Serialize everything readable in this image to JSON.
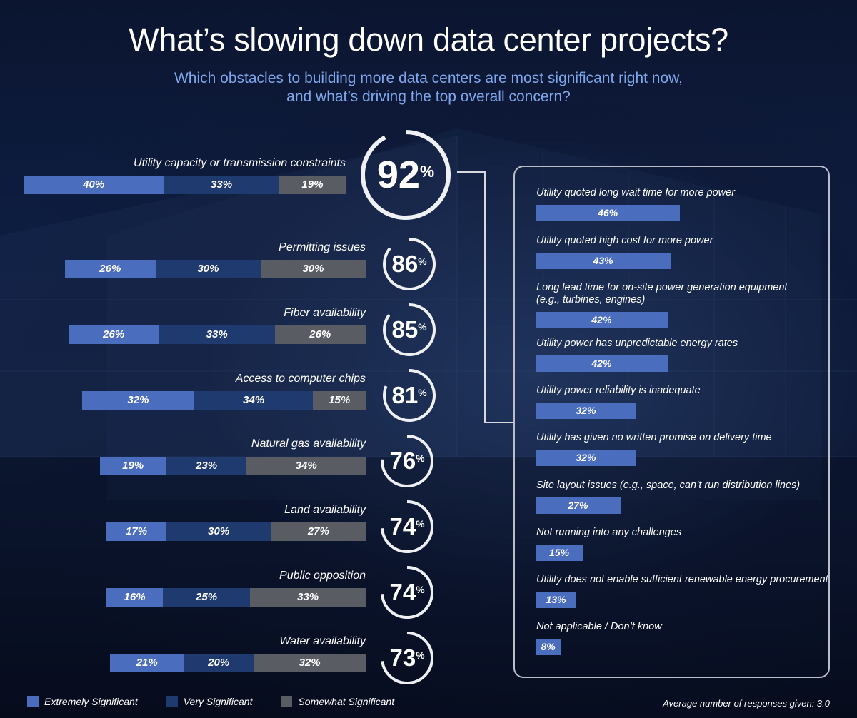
{
  "chart_data": [
    {
      "type": "bar",
      "orientation": "horizontal-stacked",
      "title": "What’s slowing down data center projects?",
      "subtitle_lines": [
        "Which obstacles to building more data centers are most significant right now,",
        "and what’s driving the top overall concern?"
      ],
      "categories": [
        "Utility capacity or transmission constraints",
        "Permitting issues",
        "Fiber availability",
        "Access to computer chips",
        "Natural gas availability",
        "Land availability",
        "Public opposition",
        "Water availability"
      ],
      "series": [
        {
          "name": "Extremely Significant",
          "color": "#4a6dbd",
          "values": [
            40,
            26,
            26,
            32,
            19,
            17,
            16,
            21
          ]
        },
        {
          "name": "Very Significant",
          "color": "#1e3a6e",
          "values": [
            33,
            30,
            33,
            34,
            23,
            30,
            25,
            20
          ]
        },
        {
          "name": "Somewhat Significant",
          "color": "#595c63",
          "values": [
            19,
            30,
            26,
            15,
            34,
            27,
            33,
            32
          ]
        }
      ],
      "totals": [
        92,
        86,
        85,
        81,
        76,
        74,
        74,
        73
      ],
      "value_suffix": "%",
      "legend_position": "bottom-left"
    },
    {
      "type": "bar",
      "orientation": "horizontal",
      "categories": [
        [
          "Utility quoted long wait time for more power"
        ],
        [
          "Utility quoted high cost for more power"
        ],
        [
          "Long lead time for on-site power generation equipment",
          "(e.g., turbines, engines)"
        ],
        [
          "Utility power has unpredictable energy rates"
        ],
        [
          "Utility power reliability is inadequate"
        ],
        [
          "Utility has given no written promise on delivery time"
        ],
        [
          "Site layout issues (e.g., space, can’t run distribution lines)"
        ],
        [
          "Not running into any challenges"
        ],
        [
          "Utility does not enable sufficient renewable energy procurement"
        ],
        [
          "Not applicable / Don’t know"
        ]
      ],
      "values": [
        46,
        43,
        42,
        42,
        32,
        32,
        27,
        15,
        13,
        8
      ],
      "value_suffix": "%",
      "color": "#4a6dbd"
    }
  ],
  "footnote": "Average number of responses given: 3.0"
}
